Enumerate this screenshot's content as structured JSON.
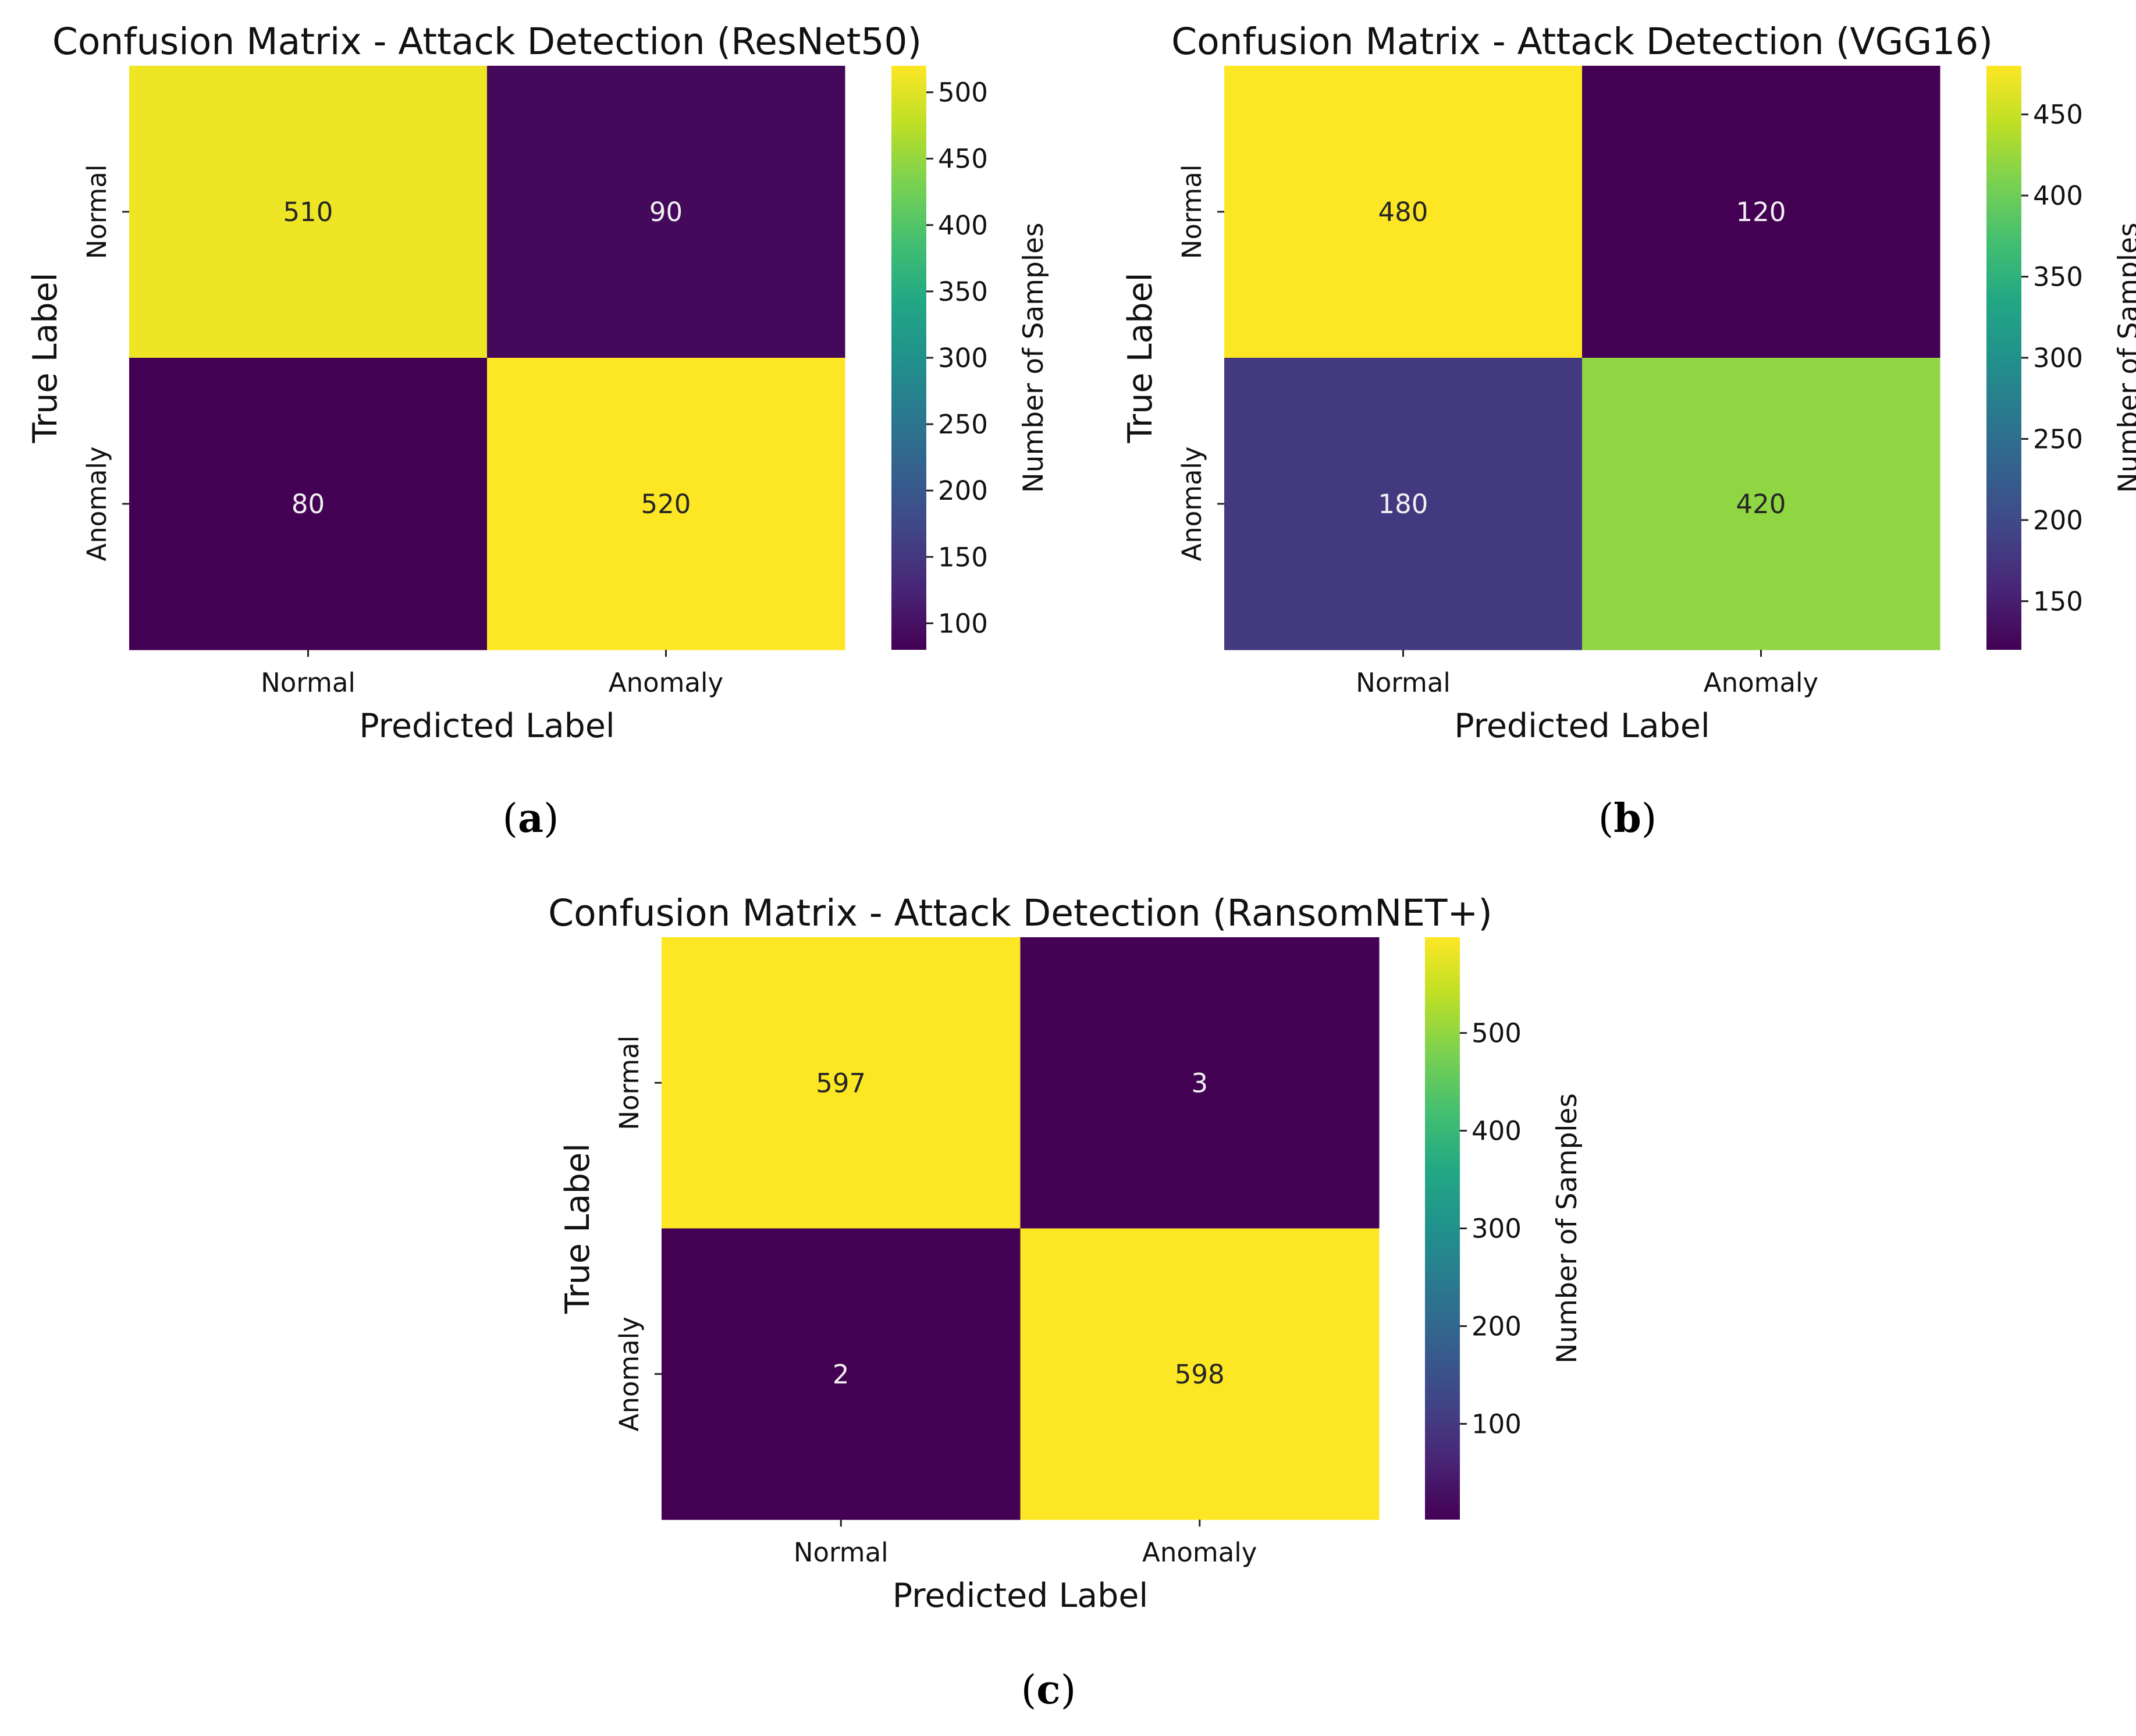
{
  "chart_data": [
    {
      "type": "heatmap",
      "panel": "a",
      "title": "Confusion Matrix - Attack Detection (ResNet50)",
      "xlabel": "Predicted Label",
      "ylabel": "True Label",
      "row_labels": [
        "Normal",
        "Anomaly"
      ],
      "col_labels": [
        "Normal",
        "Anomaly"
      ],
      "values": [
        [
          510,
          90
        ],
        [
          80,
          520
        ]
      ],
      "colorbar": {
        "label": "Number of Samples",
        "range": [
          80,
          520
        ],
        "ticks": [
          100,
          150,
          200,
          250,
          300,
          350,
          400,
          450,
          500
        ],
        "colormap": "viridis"
      }
    },
    {
      "type": "heatmap",
      "panel": "b",
      "title": "Confusion Matrix - Attack Detection (VGG16)",
      "xlabel": "Predicted Label",
      "ylabel": "True Label",
      "row_labels": [
        "Normal",
        "Anomaly"
      ],
      "col_labels": [
        "Normal",
        "Anomaly"
      ],
      "values": [
        [
          480,
          120
        ],
        [
          180,
          420
        ]
      ],
      "colorbar": {
        "label": "Number of Samples",
        "range": [
          120,
          480
        ],
        "ticks": [
          150,
          200,
          250,
          300,
          350,
          400,
          450
        ],
        "colormap": "viridis"
      }
    },
    {
      "type": "heatmap",
      "panel": "c",
      "title": "Confusion Matrix - Attack Detection (RansomNET+)",
      "xlabel": "Predicted Label",
      "ylabel": "True Label",
      "row_labels": [
        "Normal",
        "Anomaly"
      ],
      "col_labels": [
        "Normal",
        "Anomaly"
      ],
      "values": [
        [
          597,
          3
        ],
        [
          2,
          598
        ]
      ],
      "colorbar": {
        "label": "Number of Samples",
        "range": [
          2,
          598
        ],
        "ticks": [
          100,
          200,
          300,
          400,
          500
        ],
        "colormap": "viridis"
      }
    }
  ],
  "captions": {
    "a": "a",
    "b": "b",
    "c": "c"
  },
  "colors": {
    "viridis_low": "#440154",
    "viridis_high": "#fde725"
  }
}
